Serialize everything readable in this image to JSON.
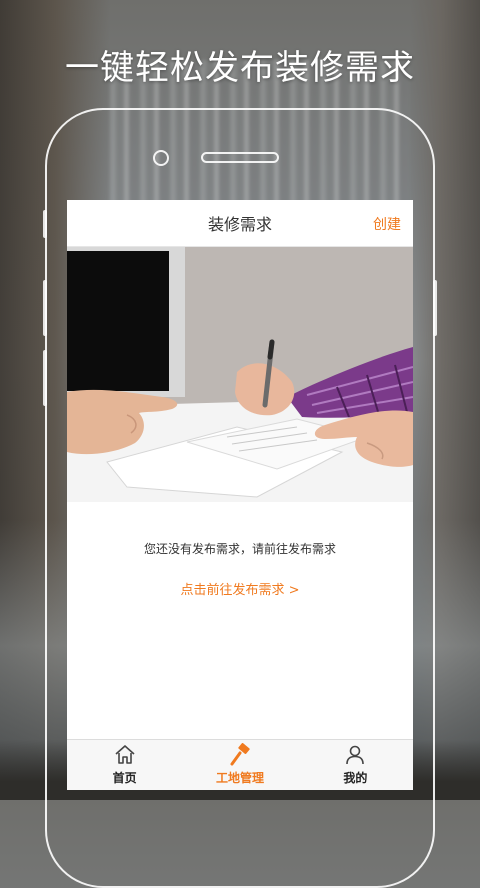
{
  "promo": {
    "headline": "一键轻松发布装修需求"
  },
  "header": {
    "title": "装修需求",
    "create_label": "创建"
  },
  "empty_state": {
    "message": "您还没有发布需求，请前往发布需求",
    "link_label": "点击前往发布需求 >"
  },
  "tabbar": {
    "items": [
      {
        "label": "首页",
        "icon": "home-icon",
        "active": false
      },
      {
        "label": "工地管理",
        "icon": "hammer-icon",
        "active": true
      },
      {
        "label": "我的",
        "icon": "user-icon",
        "active": false
      }
    ]
  },
  "colors": {
    "accent": "#f07a1f",
    "text": "#333333"
  }
}
